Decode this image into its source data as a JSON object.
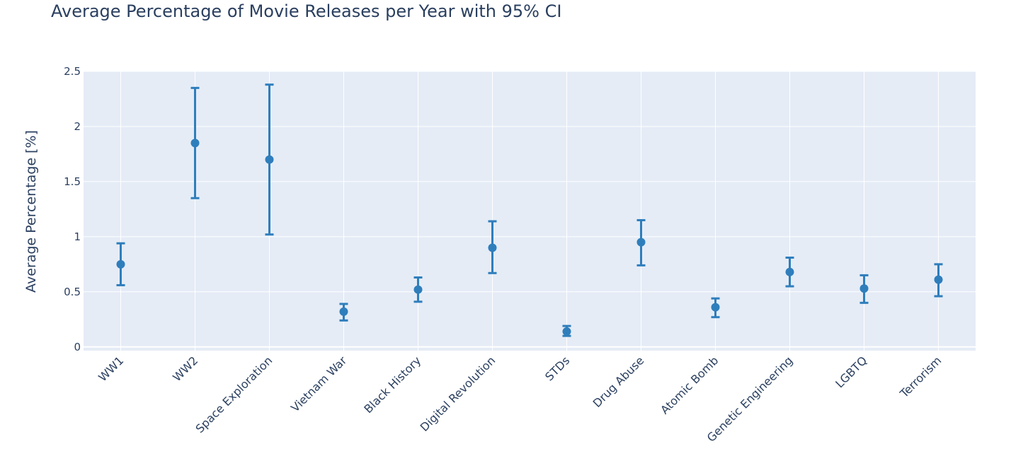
{
  "chart_data": {
    "type": "scatter",
    "title": "Average Percentage of Movie Releases per Year with 95% CI",
    "xlabel": "",
    "ylabel": "Average Percentage [%]",
    "ylim": [
      -0.04,
      2.5
    ],
    "yticks": [
      0,
      0.5,
      1,
      1.5,
      2,
      2.5
    ],
    "ytick_labels": [
      "0",
      "0.5",
      "1",
      "1.5",
      "2",
      "2.5"
    ],
    "grid": true,
    "error_bars": "95% CI",
    "marker_color": "#2f7ebc",
    "plot_bgcolor": "#e5ecf6",
    "categories": [
      "WW1",
      "WW2",
      "Space Exploration",
      "Vietnam War",
      "Black History",
      "Digital Revolution",
      "STDs",
      "Drug Abuse",
      "Atomic Bomb",
      "Genetic Engineering",
      "LGBTQ",
      "Terrorism"
    ],
    "values": [
      0.75,
      1.85,
      1.7,
      0.32,
      0.52,
      0.9,
      0.14,
      0.95,
      0.36,
      0.68,
      0.53,
      0.61
    ],
    "ci_lower": [
      0.56,
      1.35,
      1.02,
      0.24,
      0.41,
      0.67,
      0.1,
      0.74,
      0.27,
      0.55,
      0.4,
      0.46
    ],
    "ci_upper": [
      0.94,
      2.35,
      2.38,
      0.39,
      0.63,
      1.14,
      0.19,
      1.15,
      0.44,
      0.81,
      0.65,
      0.75
    ]
  }
}
